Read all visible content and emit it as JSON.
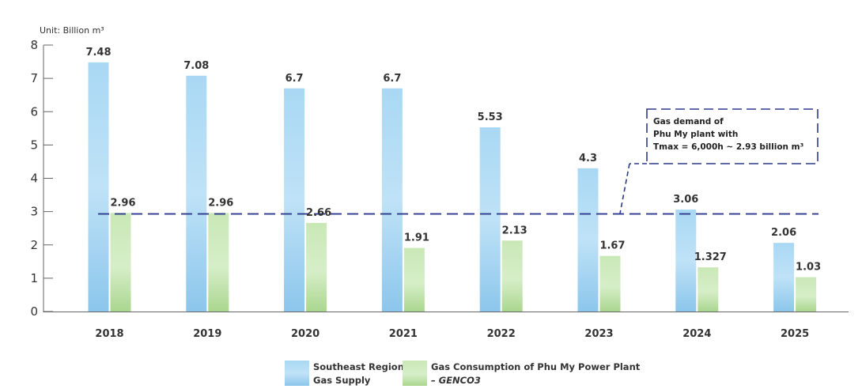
{
  "chart_data": {
    "type": "bar",
    "unit_label": "Unit: Billion m³",
    "categories": [
      "2018",
      "2019",
      "2020",
      "2021",
      "2022",
      "2023",
      "2024",
      "2025"
    ],
    "ylim": [
      0,
      8
    ],
    "yticks": [
      "0",
      "1",
      "2",
      "3",
      "4",
      "5",
      "6",
      "7",
      "8"
    ],
    "series": [
      {
        "name_line1": "Southeast Region",
        "name_line2": "Gas Supply",
        "color": "#9dd0f0",
        "values": [
          7.48,
          7.08,
          6.7,
          6.7,
          5.53,
          4.3,
          3.06,
          2.06
        ],
        "labels": [
          "7.48",
          "7.08",
          "6.7",
          "6.7",
          "5.53",
          "4.3",
          "3.06",
          "2.06"
        ]
      },
      {
        "name_line1": "Gas Consumption of Phu My Power Plant",
        "name_line2": "– GENCO3",
        "color": "#b6dea0",
        "values": [
          2.96,
          2.96,
          2.66,
          1.91,
          2.13,
          1.67,
          1.327,
          1.03
        ],
        "labels": [
          "2.96",
          "2.96",
          "2.66",
          "1.91",
          "2.13",
          "1.67",
          "1.327",
          "1.03"
        ]
      }
    ],
    "reference_line": {
      "value": 2.93,
      "color": "#2d3a8c"
    },
    "annotation": {
      "lines": [
        "Gas demand of",
        "Phu My plant with",
        "Tmax = 6,000h ~ 2.93 billion m³"
      ]
    },
    "grid": false,
    "legend_position": "bottom-center"
  }
}
